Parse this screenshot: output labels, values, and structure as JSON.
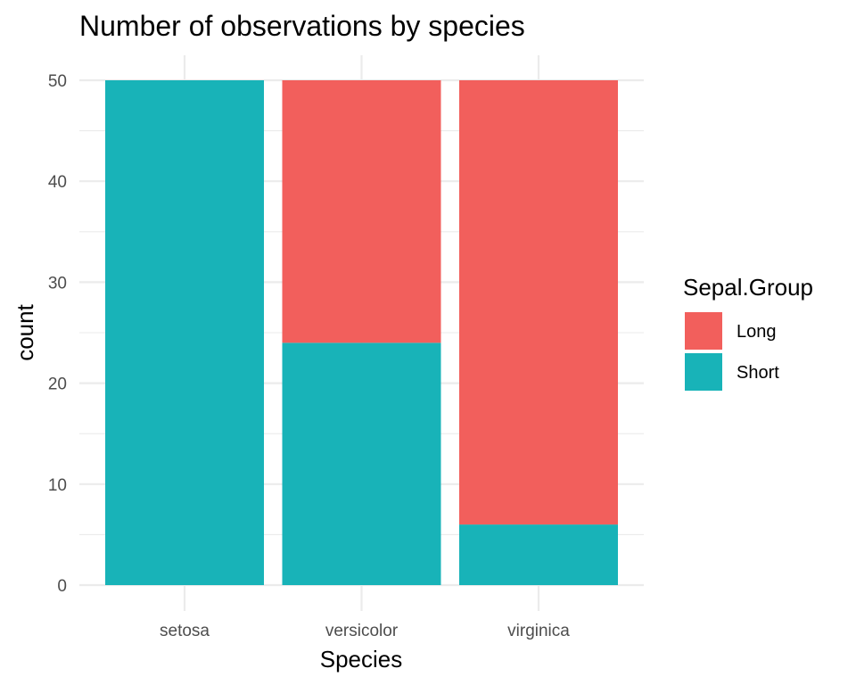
{
  "chart_data": {
    "type": "bar",
    "stacked": true,
    "title": "Number of observations by species",
    "xlabel": "Species",
    "ylabel": "count",
    "categories": [
      "setosa",
      "versicolor",
      "virginica"
    ],
    "series": [
      {
        "name": "Long",
        "values": [
          0,
          26,
          44
        ],
        "color": "#F25F5C"
      },
      {
        "name": "Short",
        "values": [
          50,
          24,
          6
        ],
        "color": "#18B3B8"
      }
    ],
    "ylim": [
      0,
      50
    ],
    "yticks": [
      0,
      10,
      20,
      30,
      40,
      50
    ],
    "grid": true,
    "legend": {
      "title": "Sepal.Group",
      "position": "right"
    }
  }
}
